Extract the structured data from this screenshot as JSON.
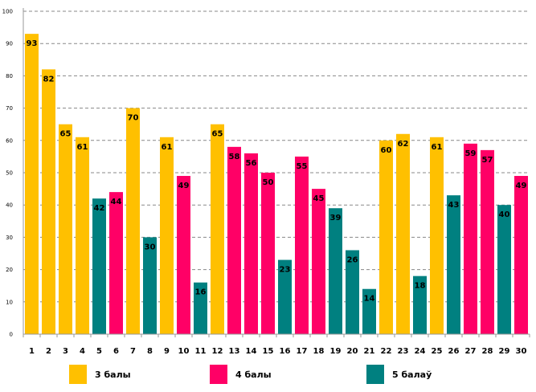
{
  "chart_data": {
    "type": "bar",
    "categories": [
      "1",
      "2",
      "3",
      "4",
      "5",
      "6",
      "7",
      "8",
      "9",
      "10",
      "11",
      "12",
      "13",
      "14",
      "15",
      "16",
      "17",
      "18",
      "19",
      "20",
      "21",
      "22",
      "23",
      "24",
      "25",
      "26",
      "27",
      "28",
      "29",
      "30"
    ],
    "values": [
      93,
      82,
      65,
      61,
      42,
      44,
      70,
      30,
      61,
      49,
      16,
      65,
      58,
      56,
      50,
      23,
      55,
      45,
      39,
      26,
      14,
      60,
      62,
      18,
      61,
      43,
      59,
      57,
      40,
      49
    ],
    "groups": [
      "3",
      "3",
      "3",
      "3",
      "5",
      "4",
      "3",
      "5",
      "3",
      "4",
      "5",
      "3",
      "4",
      "4",
      "4",
      "5",
      "4",
      "4",
      "5",
      "5",
      "5",
      "3",
      "3",
      "5",
      "3",
      "5",
      "4",
      "4",
      "5",
      "4"
    ],
    "yticks": [
      0,
      10,
      20,
      30,
      40,
      50,
      60,
      70,
      80,
      90,
      100
    ],
    "ylim": [
      0,
      100
    ],
    "grid": true,
    "title": "",
    "xlabel": "",
    "ylabel": "",
    "legend": [
      {
        "key": "3",
        "label": "3 балы",
        "color": "#FFC000"
      },
      {
        "key": "4",
        "label": "4 балы",
        "color": "#FF0066"
      },
      {
        "key": "5",
        "label": "5 балаў",
        "color": "#008080"
      }
    ]
  }
}
